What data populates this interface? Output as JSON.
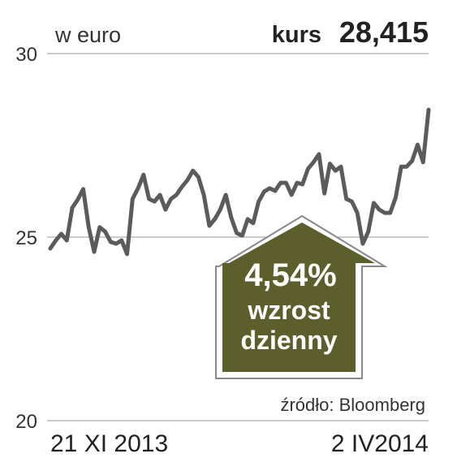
{
  "chart_data": {
    "type": "line",
    "subtitle": "w euro",
    "price_label": "kurs",
    "price": "28,415",
    "change": "4,54%",
    "change_text": [
      "wzrost",
      "dzienny"
    ],
    "source": "źródło: Bloomberg",
    "categories": [
      "21 XI 2013",
      null,
      null,
      null,
      null,
      null,
      null,
      null,
      null,
      null,
      null,
      null,
      null,
      null,
      null,
      null,
      null,
      null,
      null,
      null,
      null,
      null,
      null,
      null,
      null,
      null,
      null,
      null,
      null,
      null,
      null,
      null,
      null,
      null,
      null,
      null,
      null,
      null,
      null,
      null,
      null,
      null,
      null,
      null,
      null,
      null,
      null,
      null,
      null,
      null,
      null,
      null,
      null,
      null,
      null,
      null,
      null,
      null,
      null,
      null,
      null,
      null,
      null,
      null,
      null,
      null,
      null,
      null,
      null,
      "2 IV2014"
    ],
    "series": [
      {
        "color": "#5b5b5b",
        "values": [
          24.69,
          24.91,
          25.09,
          24.91,
          25.8,
          26.02,
          26.31,
          25.27,
          24.6,
          25.27,
          25.15,
          24.87,
          24.82,
          24.91,
          24.54,
          26.04,
          26.33,
          26.7,
          26.04,
          25.97,
          26.15,
          25.75,
          26.04,
          26.15,
          26.37,
          26.55,
          26.81,
          26.64,
          26.15,
          25.31,
          25.49,
          25.75,
          26.15,
          25.53,
          25.11,
          25.04,
          25.49,
          25.38,
          25.97,
          26.24,
          26.33,
          26.26,
          26.48,
          26.48,
          26.15,
          26.48,
          26.44,
          26.86,
          27.04,
          27.26,
          26.19,
          27.0,
          26.81,
          26.92,
          26.04,
          25.97,
          25.66,
          24.82,
          25.15,
          25.93,
          25.75,
          25.66,
          25.66,
          26.08,
          26.92,
          26.92,
          27.08,
          27.52,
          27.04,
          28.47
        ]
      }
    ],
    "ylim": [
      20,
      30
    ],
    "yticks": [
      20,
      25,
      30
    ],
    "grid": true
  }
}
